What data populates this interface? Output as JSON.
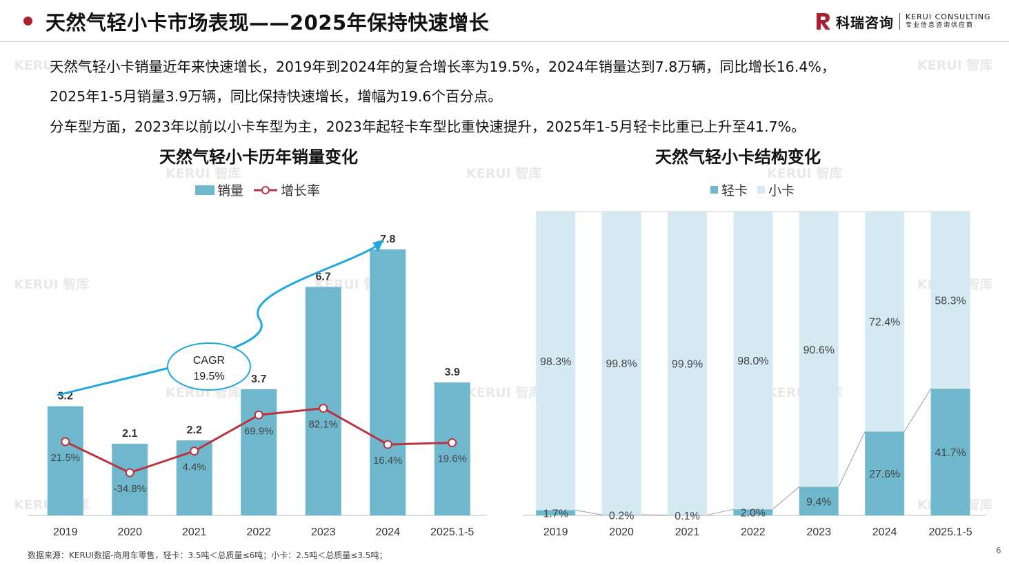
{
  "header": {
    "title": "天然气轻小卡市场表现——2025年保持快速增长",
    "logo_cn": "科瑞咨询",
    "logo_en": "KERUI CONSULTING",
    "logo_tagline": "专业信息咨询供应商"
  },
  "intro": {
    "line1": "天然气轻小卡销量近年来快速增长，2019年到2024年的复合增长率为19.5%，2024年销量达到7.8万辆，同比增长16.4%，",
    "line2": "2025年1-5月销量3.9万辆，同比保持快速增长，增幅为19.6个百分点。",
    "line3": "分车型方面，2023年以前以小卡车型为主，2023年起轻卡车型比重快速提升，2025年1-5月轻卡比重已上升至41.7%。"
  },
  "watermark": "KERUI 智库",
  "footer": {
    "source": "数据来源：KERUI数据-商用车零售，轻卡：3.5吨＜总质量≤6吨；小卡：2.5吨＜总质量≤3.5吨；",
    "page": "6"
  },
  "colors": {
    "accent": "#a8232f",
    "bar": "#6fb7cd",
    "line": "#b9343f",
    "cagr_arrow": "#1fa7e0",
    "light_truck": "#6fb7cd",
    "mini_truck": "#d4e9f1"
  },
  "chart_data": [
    {
      "type": "bar",
      "title": "天然气轻小卡历年销量变化",
      "categories": [
        "2019",
        "2020",
        "2021",
        "2022",
        "2023",
        "2024",
        "2025.1-5"
      ],
      "series": [
        {
          "name": "销量",
          "type": "bar",
          "values": [
            3.2,
            2.1,
            2.2,
            3.7,
            6.7,
            7.8,
            3.9
          ],
          "labels": [
            "3.2",
            "2.1",
            "2.2",
            "3.7",
            "6.7",
            "7.8",
            "3.9"
          ]
        },
        {
          "name": "增长率",
          "type": "line",
          "values": [
            21.5,
            -34.8,
            4.4,
            69.9,
            82.1,
            16.4,
            19.6
          ],
          "labels": [
            "21.5%",
            "-34.8%",
            "4.4%",
            "69.9%",
            "82.1%",
            "16.4%",
            "19.6%"
          ]
        }
      ],
      "annotation": {
        "line1": "CAGR",
        "line2": "19.5%"
      },
      "legend_position": "top-center"
    },
    {
      "type": "bar",
      "stacked": true,
      "percent": true,
      "title": "天然气轻小卡结构变化",
      "categories": [
        "2019",
        "2020",
        "2021",
        "2022",
        "2023",
        "2024",
        "2025.1-5"
      ],
      "series": [
        {
          "name": "轻卡",
          "values": [
            1.7,
            0.2,
            0.1,
            2.0,
            9.4,
            27.6,
            41.7
          ],
          "labels": [
            "1.7%",
            "0.2%",
            "0.1%",
            "2.0%",
            "9.4%",
            "27.6%",
            "41.7%"
          ]
        },
        {
          "name": "小卡",
          "values": [
            98.3,
            99.8,
            99.9,
            98.0,
            90.6,
            72.4,
            58.3
          ],
          "labels": [
            "98.3%",
            "99.8%",
            "99.9%",
            "98.0%",
            "90.6%",
            "72.4%",
            "58.3%"
          ]
        }
      ],
      "legend_position": "top-center"
    }
  ]
}
